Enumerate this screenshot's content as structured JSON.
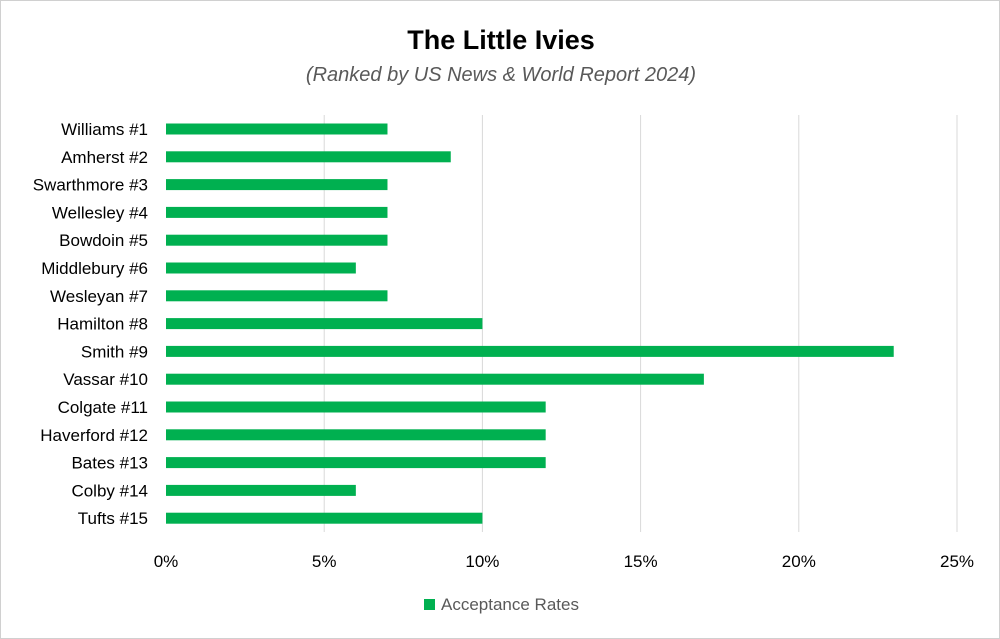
{
  "chart_data": {
    "type": "bar",
    "orientation": "horizontal",
    "title": "The Little Ivies",
    "subtitle": "(Ranked by US News & World Report 2024)",
    "xlabel": "",
    "ylabel": "",
    "categories": [
      "Williams #1",
      "Amherst #2",
      "Swarthmore #3",
      "Wellesley #4",
      "Bowdoin #5",
      "Middlebury #6",
      "Wesleyan #7",
      "Hamilton #8",
      "Smith #9",
      "Vassar #10",
      "Colgate #11",
      "Haverford #12",
      "Bates #13",
      "Colby #14",
      "Tufts #15"
    ],
    "series": [
      {
        "name": "Acceptance Rates",
        "color": "#00b050",
        "values": [
          7,
          9,
          7,
          7,
          7,
          6,
          7,
          10,
          23,
          17,
          12,
          12,
          12,
          6,
          10
        ]
      }
    ],
    "xlim": [
      0,
      25
    ],
    "xticks": [
      0,
      5,
      10,
      15,
      20,
      25
    ],
    "xtick_labels": [
      "0%",
      "5%",
      "10%",
      "15%",
      "20%",
      "25%"
    ],
    "grid": true,
    "legend_position": "bottom"
  }
}
